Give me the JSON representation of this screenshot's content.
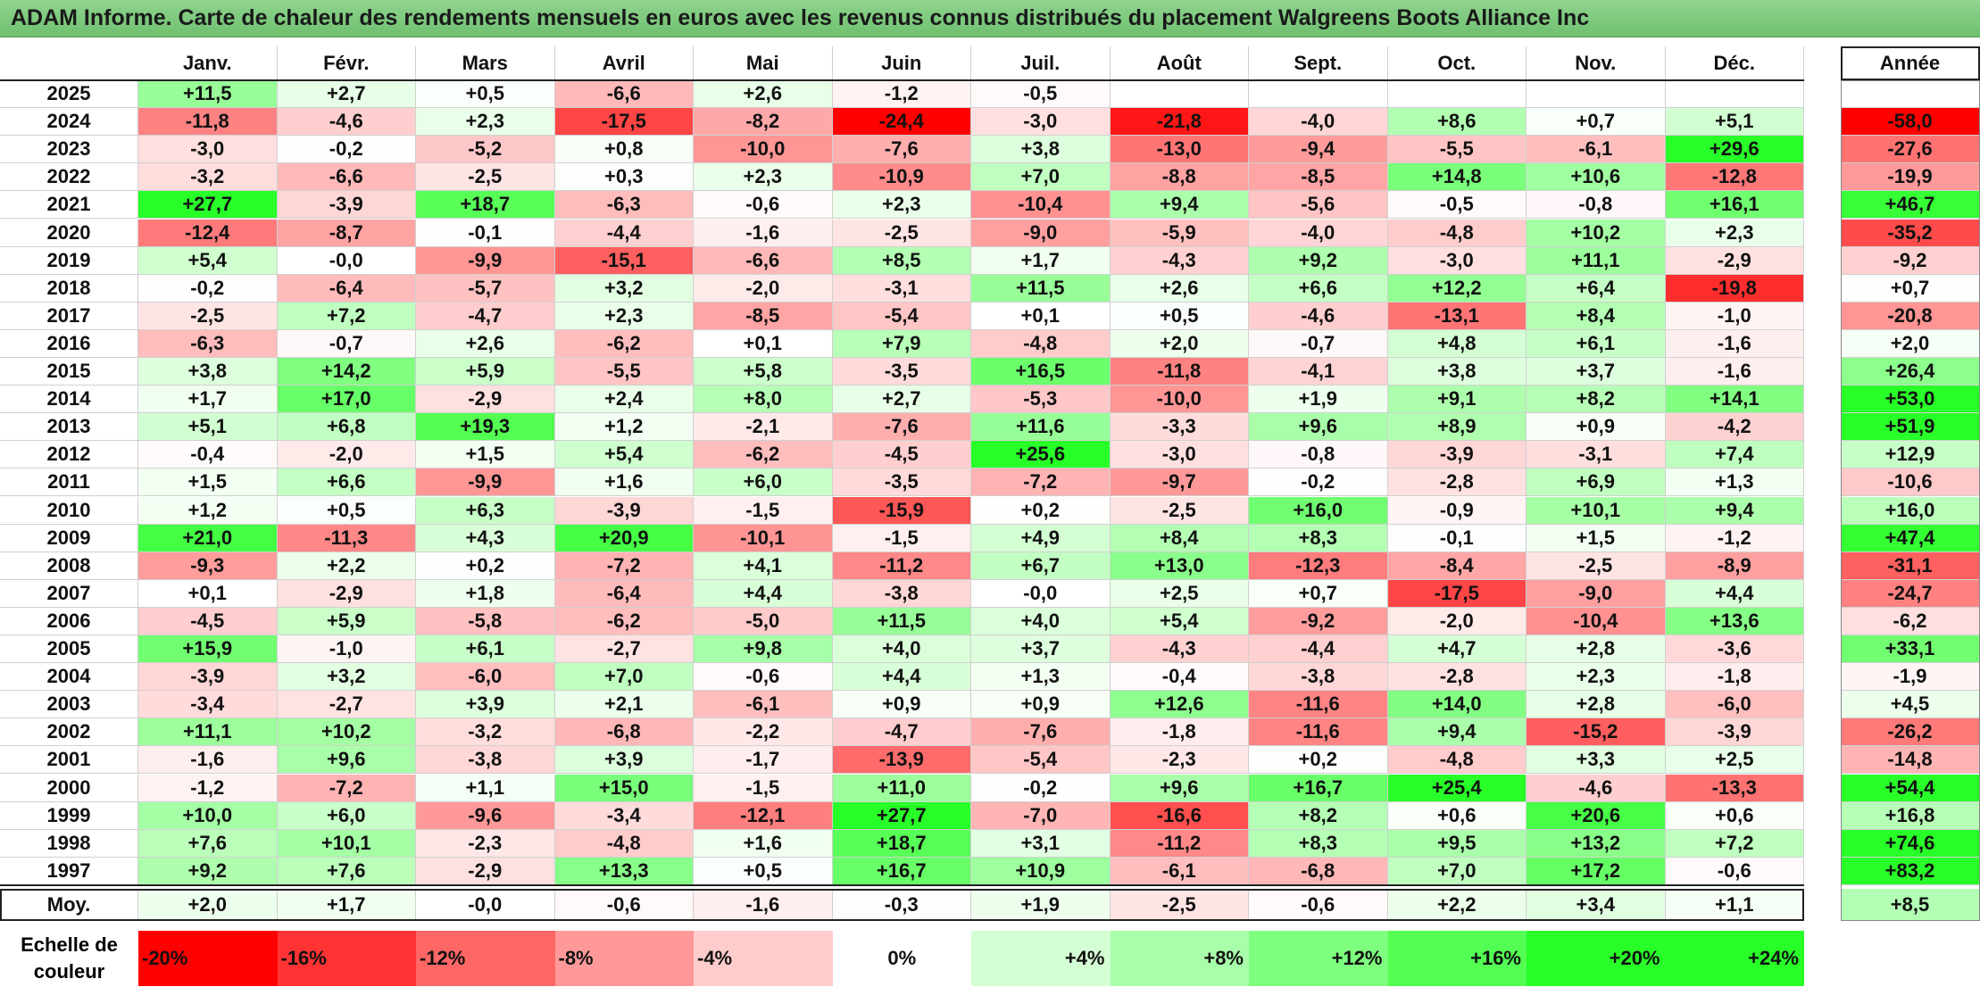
{
  "title": "ADAM Informe. Carte de chaleur des rendements mensuels en euros avec les revenus connus distribués du placement Walgreens Boots Alliance Inc",
  "chart_data": {
    "type": "heatmap",
    "title": "ADAM Informe. Carte de chaleur des rendements mensuels en euros avec les revenus connus distribués du placement Walgreens Boots Alliance Inc",
    "months": [
      "Janv.",
      "Févr.",
      "Mars",
      "Avril",
      "Mai",
      "Juin",
      "Juil.",
      "Août",
      "Sept.",
      "Oct.",
      "Nov.",
      "Déc."
    ],
    "year_header": "Année",
    "rows": [
      {
        "year": "2025",
        "months": [
          "+11,5",
          "+2,7",
          "+0,5",
          "-6,6",
          "+2,6",
          "-1,2",
          "-0,5",
          "",
          "",
          "",
          "",
          ""
        ],
        "annual": ""
      },
      {
        "year": "2024",
        "months": [
          "-11,8",
          "-4,6",
          "+2,3",
          "-17,5",
          "-8,2",
          "-24,4",
          "-3,0",
          "-21,8",
          "-4,0",
          "+8,6",
          "+0,7",
          "+5,1"
        ],
        "annual": "-58,0"
      },
      {
        "year": "2023",
        "months": [
          "-3,0",
          "-0,2",
          "-5,2",
          "+0,8",
          "-10,0",
          "-7,6",
          "+3,8",
          "-13,0",
          "-9,4",
          "-5,5",
          "-6,1",
          "+29,6"
        ],
        "annual": "-27,6"
      },
      {
        "year": "2022",
        "months": [
          "-3,2",
          "-6,6",
          "-2,5",
          "+0,3",
          "+2,3",
          "-10,9",
          "+7,0",
          "-8,8",
          "-8,5",
          "+14,8",
          "+10,6",
          "-12,8"
        ],
        "annual": "-19,9"
      },
      {
        "year": "2021",
        "months": [
          "+27,7",
          "-3,9",
          "+18,7",
          "-6,3",
          "-0,6",
          "+2,3",
          "-10,4",
          "+9,4",
          "-5,6",
          "-0,5",
          "-0,8",
          "+16,1"
        ],
        "annual": "+46,7"
      },
      {
        "year": "2020",
        "months": [
          "-12,4",
          "-8,7",
          "-0,1",
          "-4,4",
          "-1,6",
          "-2,5",
          "-9,0",
          "-5,9",
          "-4,0",
          "-4,8",
          "+10,2",
          "+2,3"
        ],
        "annual": "-35,2"
      },
      {
        "year": "2019",
        "months": [
          "+5,4",
          "-0,0",
          "-9,9",
          "-15,1",
          "-6,6",
          "+8,5",
          "+1,7",
          "-4,3",
          "+9,2",
          "-3,0",
          "+11,1",
          "-2,9"
        ],
        "annual": "-9,2"
      },
      {
        "year": "2018",
        "months": [
          "-0,2",
          "-6,4",
          "-5,7",
          "+3,2",
          "-2,0",
          "-3,1",
          "+11,5",
          "+2,6",
          "+6,6",
          "+12,2",
          "+6,4",
          "-19,8"
        ],
        "annual": "+0,7"
      },
      {
        "year": "2017",
        "months": [
          "-2,5",
          "+7,2",
          "-4,7",
          "+2,3",
          "-8,5",
          "-5,4",
          "+0,1",
          "+0,5",
          "-4,6",
          "-13,1",
          "+8,4",
          "-1,0"
        ],
        "annual": "-20,8"
      },
      {
        "year": "2016",
        "months": [
          "-6,3",
          "-0,7",
          "+2,6",
          "-6,2",
          "+0,1",
          "+7,9",
          "-4,8",
          "+2,0",
          "-0,7",
          "+4,8",
          "+6,1",
          "-1,6"
        ],
        "annual": "+2,0"
      },
      {
        "year": "2015",
        "months": [
          "+3,8",
          "+14,2",
          "+5,9",
          "-5,5",
          "+5,8",
          "-3,5",
          "+16,5",
          "-11,8",
          "-4,1",
          "+3,8",
          "+3,7",
          "-1,6"
        ],
        "annual": "+26,4"
      },
      {
        "year": "2014",
        "months": [
          "+1,7",
          "+17,0",
          "-2,9",
          "+2,4",
          "+8,0",
          "+2,7",
          "-5,3",
          "-10,0",
          "+1,9",
          "+9,1",
          "+8,2",
          "+14,1"
        ],
        "annual": "+53,0"
      },
      {
        "year": "2013",
        "months": [
          "+5,1",
          "+6,8",
          "+19,3",
          "+1,2",
          "-2,1",
          "-7,6",
          "+11,6",
          "-3,3",
          "+9,6",
          "+8,9",
          "+0,9",
          "-4,2"
        ],
        "annual": "+51,9"
      },
      {
        "year": "2012",
        "months": [
          "-0,4",
          "-2,0",
          "+1,5",
          "+5,4",
          "-6,2",
          "-4,5",
          "+25,6",
          "-3,0",
          "-0,8",
          "-3,9",
          "-3,1",
          "+7,4"
        ],
        "annual": "+12,9"
      },
      {
        "year": "2011",
        "months": [
          "+1,5",
          "+6,6",
          "-9,9",
          "+1,6",
          "+6,0",
          "-3,5",
          "-7,2",
          "-9,7",
          "-0,2",
          "-2,8",
          "+6,9",
          "+1,3"
        ],
        "annual": "-10,6"
      },
      {
        "year": "2010",
        "months": [
          "+1,2",
          "+0,5",
          "+6,3",
          "-3,9",
          "-1,5",
          "-15,9",
          "+0,2",
          "-2,5",
          "+16,0",
          "-0,9",
          "+10,1",
          "+9,4"
        ],
        "annual": "+16,0"
      },
      {
        "year": "2009",
        "months": [
          "+21,0",
          "-11,3",
          "+4,3",
          "+20,9",
          "-10,1",
          "-1,5",
          "+4,9",
          "+8,4",
          "+8,3",
          "-0,1",
          "+1,5",
          "-1,2"
        ],
        "annual": "+47,4"
      },
      {
        "year": "2008",
        "months": [
          "-9,3",
          "+2,2",
          "+0,2",
          "-7,2",
          "+4,1",
          "-11,2",
          "+6,7",
          "+13,0",
          "-12,3",
          "-8,4",
          "-2,5",
          "-8,9"
        ],
        "annual": "-31,1"
      },
      {
        "year": "2007",
        "months": [
          "+0,1",
          "-2,9",
          "+1,8",
          "-6,4",
          "+4,4",
          "-3,8",
          "-0,0",
          "+2,5",
          "+0,7",
          "-17,5",
          "-9,0",
          "+4,4"
        ],
        "annual": "-24,7"
      },
      {
        "year": "2006",
        "months": [
          "-4,5",
          "+5,9",
          "-5,8",
          "-6,2",
          "-5,0",
          "+11,5",
          "+4,0",
          "+5,4",
          "-9,2",
          "-2,0",
          "-10,4",
          "+13,6"
        ],
        "annual": "-6,2"
      },
      {
        "year": "2005",
        "months": [
          "+15,9",
          "-1,0",
          "+6,1",
          "-2,7",
          "+9,8",
          "+4,0",
          "+3,7",
          "-4,3",
          "-4,4",
          "+4,7",
          "+2,8",
          "-3,6"
        ],
        "annual": "+33,1"
      },
      {
        "year": "2004",
        "months": [
          "-3,9",
          "+3,2",
          "-6,0",
          "+7,0",
          "-0,6",
          "+4,4",
          "+1,3",
          "-0,4",
          "-3,8",
          "-2,8",
          "+2,3",
          "-1,8"
        ],
        "annual": "-1,9"
      },
      {
        "year": "2003",
        "months": [
          "-3,4",
          "-2,7",
          "+3,9",
          "+2,1",
          "-6,1",
          "+0,9",
          "+0,9",
          "+12,6",
          "-11,6",
          "+14,0",
          "+2,8",
          "-6,0"
        ],
        "annual": "+4,5"
      },
      {
        "year": "2002",
        "months": [
          "+11,1",
          "+10,2",
          "-3,2",
          "-6,8",
          "-2,2",
          "-4,7",
          "-7,6",
          "-1,8",
          "-11,6",
          "+9,4",
          "-15,2",
          "-3,9"
        ],
        "annual": "-26,2"
      },
      {
        "year": "2001",
        "months": [
          "-1,6",
          "+9,6",
          "-3,8",
          "+3,9",
          "-1,7",
          "-13,9",
          "-5,4",
          "-2,3",
          "+0,2",
          "-4,8",
          "+3,3",
          "+2,5"
        ],
        "annual": "-14,8"
      },
      {
        "year": "2000",
        "months": [
          "-1,2",
          "-7,2",
          "+1,1",
          "+15,0",
          "-1,5",
          "+11,0",
          "-0,2",
          "+9,6",
          "+16,7",
          "+25,4",
          "-4,6",
          "-13,3"
        ],
        "annual": "+54,4"
      },
      {
        "year": "1999",
        "months": [
          "+10,0",
          "+6,0",
          "-9,6",
          "-3,4",
          "-12,1",
          "+27,7",
          "-7,0",
          "-16,6",
          "+8,2",
          "+0,6",
          "+20,6",
          "+0,6"
        ],
        "annual": "+16,8"
      },
      {
        "year": "1998",
        "months": [
          "+7,6",
          "+10,1",
          "-2,3",
          "-4,8",
          "+1,6",
          "+18,7",
          "+3,1",
          "-11,2",
          "+8,3",
          "+9,5",
          "+13,2",
          "+7,2"
        ],
        "annual": "+74,6"
      },
      {
        "year": "1997",
        "months": [
          "+9,2",
          "+7,6",
          "-2,9",
          "+13,3",
          "+0,5",
          "+16,7",
          "+10,9",
          "-6,1",
          "-6,8",
          "+7,0",
          "+17,2",
          "-0,6"
        ],
        "annual": "+83,2"
      }
    ],
    "average": {
      "label": "Moy.",
      "months": [
        "+2,0",
        "+1,7",
        "-0,0",
        "-0,6",
        "-1,6",
        "-0,3",
        "+1,9",
        "-2,5",
        "-0,6",
        "+2,2",
        "+3,4",
        "+1,1"
      ],
      "annual": "+8,5"
    },
    "scale": {
      "label": "Echelle de couleur",
      "steps": [
        "-20%",
        "-16%",
        "-12%",
        "-8%",
        "-4%",
        "0%",
        "+4%",
        "+8%",
        "+12%",
        "+16%",
        "+20%",
        "+24%"
      ]
    }
  },
  "colors": {
    "positive": "#00ff00",
    "negative": "#ff0000",
    "neutral": "#ffffff"
  }
}
